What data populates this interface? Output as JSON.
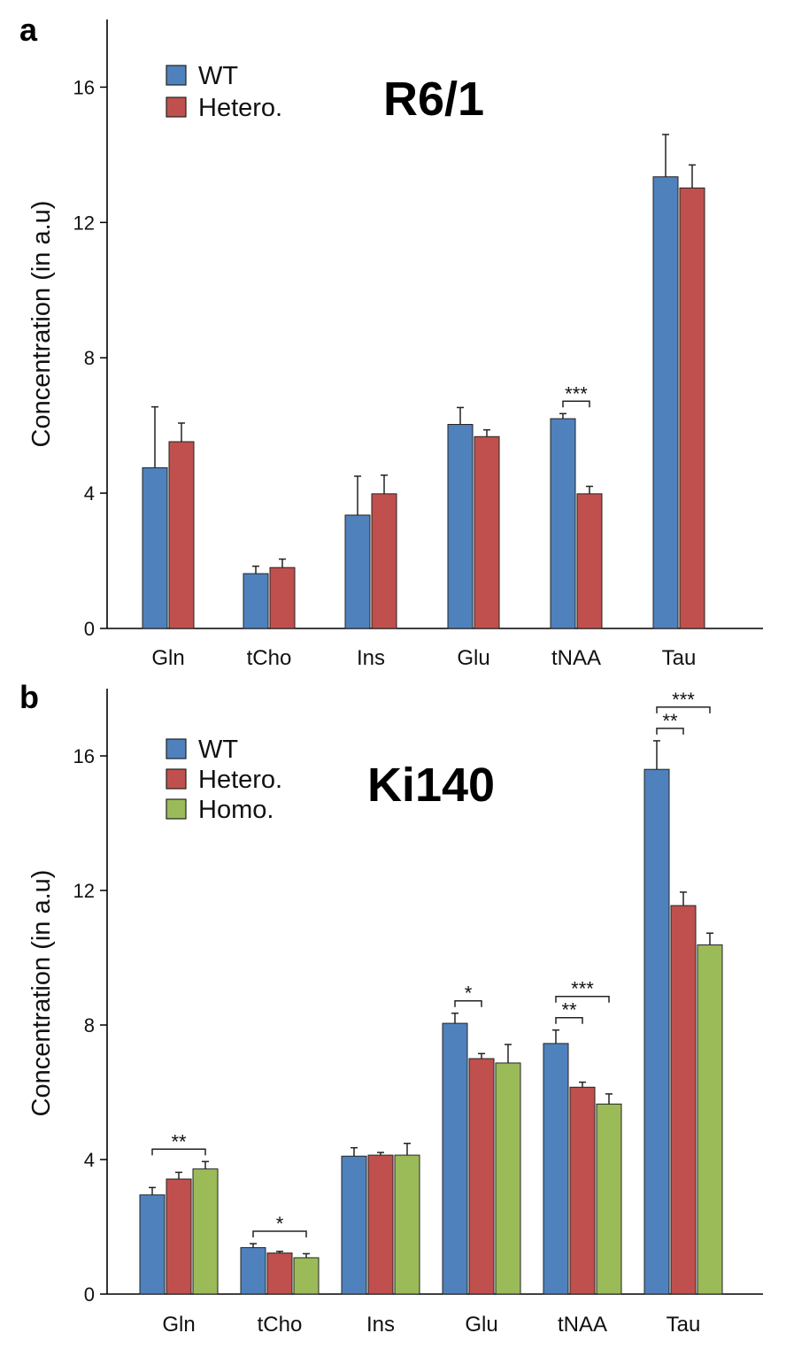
{
  "chart_data": [
    {
      "type": "bar",
      "panel_label": "a",
      "title": "R6/1",
      "ylabel": "Concentration (in a.u)",
      "xlabel": "",
      "ylim": [
        0,
        18
      ],
      "yticks": [
        "0",
        "4",
        "8",
        "12",
        "16"
      ],
      "categories": [
        "Gln",
        "tCho",
        "Ins",
        "Glu",
        "tNAA",
        "Tau"
      ],
      "series": [
        {
          "name": "WT",
          "color": "#4F81BD",
          "values": [
            4.75,
            1.62,
            3.35,
            6.03,
            6.2,
            13.35
          ],
          "errors": [
            1.8,
            0.22,
            1.15,
            0.5,
            0.15,
            1.25
          ]
        },
        {
          "name": "Hetero.",
          "color": "#C0504D",
          "values": [
            5.52,
            1.8,
            3.98,
            5.67,
            3.98,
            13.02
          ],
          "errors": [
            0.55,
            0.25,
            0.55,
            0.2,
            0.22,
            0.68
          ]
        }
      ],
      "significance": [
        {
          "category": "tNAA",
          "pair": [
            "WT",
            "Hetero."
          ],
          "level": 0,
          "label": "***"
        }
      ],
      "legend": "top-left"
    },
    {
      "type": "bar",
      "panel_label": "b",
      "title": "Ki140",
      "ylabel": "Concentration (in a.u)",
      "xlabel": "",
      "ylim": [
        0,
        18
      ],
      "yticks": [
        "0",
        "4",
        "8",
        "12",
        "16"
      ],
      "categories": [
        "Gln",
        "tCho",
        "Ins",
        "Glu",
        "tNAA",
        "Tau"
      ],
      "series": [
        {
          "name": "WT",
          "color": "#4F81BD",
          "values": [
            2.95,
            1.38,
            4.1,
            8.05,
            7.45,
            15.6
          ],
          "errors": [
            0.22,
            0.12,
            0.25,
            0.3,
            0.4,
            0.85
          ]
        },
        {
          "name": "Hetero.",
          "color": "#C0504D",
          "values": [
            3.42,
            1.22,
            4.13,
            7.0,
            6.15,
            11.55
          ],
          "errors": [
            0.2,
            0.05,
            0.08,
            0.15,
            0.15,
            0.4
          ]
        },
        {
          "name": "Homo.",
          "color": "#9BBB59",
          "values": [
            3.72,
            1.08,
            4.13,
            6.87,
            5.65,
            10.38
          ],
          "errors": [
            0.22,
            0.12,
            0.35,
            0.55,
            0.3,
            0.35
          ]
        }
      ],
      "significance": [
        {
          "category": "Gln",
          "pair": [
            "WT",
            "Homo."
          ],
          "level": 0,
          "label": "**"
        },
        {
          "category": "tCho",
          "pair": [
            "WT",
            "Homo."
          ],
          "level": 0,
          "label": "*"
        },
        {
          "category": "Glu",
          "pair": [
            "WT",
            "Hetero."
          ],
          "level": 0,
          "label": "*"
        },
        {
          "category": "tNAA",
          "pair": [
            "WT",
            "Hetero."
          ],
          "level": 0,
          "label": "**"
        },
        {
          "category": "tNAA",
          "pair": [
            "WT",
            "Homo."
          ],
          "level": 1,
          "label": "***"
        },
        {
          "category": "Tau",
          "pair": [
            "WT",
            "Hetero."
          ],
          "level": 0,
          "label": "**"
        },
        {
          "category": "Tau",
          "pair": [
            "WT",
            "Homo."
          ],
          "level": 1,
          "label": "***"
        }
      ],
      "legend": "top-left"
    }
  ]
}
